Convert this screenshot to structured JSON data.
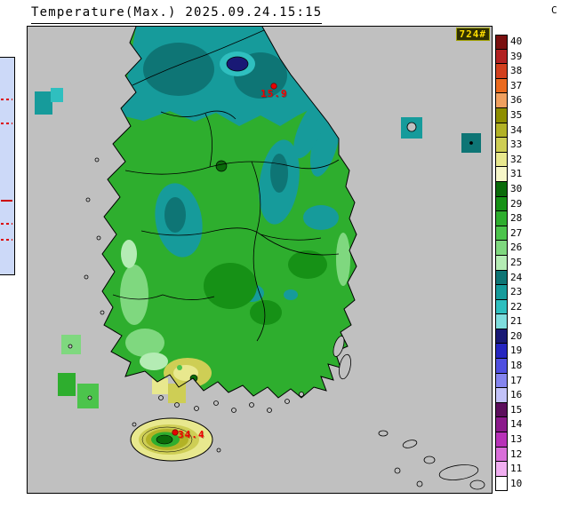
{
  "header": {
    "title": "Temperature(Max.) 2025.09.24.15:15"
  },
  "map": {
    "badge": "724#",
    "background": "#c0c0c0",
    "stations": [
      {
        "label": "15.9"
      },
      {
        "label": "34.4"
      }
    ]
  },
  "palette": {
    "sea": "#c0c0c0",
    "land": "#2eae2e",
    "green_mid": "#4cc44c",
    "green_dark": "#169116",
    "green_deep": "#0a6b0a",
    "green_light": "#7fd87f",
    "green_pale": "#b4ecb4",
    "teal": "#169b9b",
    "teal_dark": "#0e7575",
    "cyan": "#2fbfbf",
    "cyan_light": "#7fdddd",
    "navy": "#191975",
    "yellow_pale": "#e8e88e",
    "khaki": "#cece55",
    "olive": "#b2b226",
    "marker_red": "#e80000",
    "coast": "#000000"
  },
  "left_fragment": {
    "bg": "#ccd9f8",
    "line_color": "#dd0000"
  },
  "colorbar": {
    "unit": "C",
    "ticks": [
      40,
      39,
      38,
      37,
      36,
      35,
      34,
      33,
      32,
      31,
      30,
      29,
      28,
      27,
      26,
      25,
      24,
      23,
      22,
      21,
      20,
      19,
      18,
      17,
      16,
      15,
      14,
      13,
      12,
      11,
      10
    ],
    "colors": [
      "#7a1010",
      "#b22222",
      "#d2401e",
      "#ea6a1e",
      "#f0a060",
      "#8e8e00",
      "#b2b226",
      "#cece55",
      "#e8e88e",
      "#f6f6c8",
      "#0a6b0a",
      "#169116",
      "#2eae2e",
      "#4cc44c",
      "#7fd87f",
      "#b4ecb4",
      "#0e7575",
      "#169b9b",
      "#2fbfbf",
      "#7fdddd",
      "#191975",
      "#2626c0",
      "#5050e0",
      "#8585ee",
      "#c2c2f8",
      "#5c0e5c",
      "#8b1a8b",
      "#b832b8",
      "#d96fd9",
      "#f0aef0",
      "#ffffff"
    ]
  }
}
